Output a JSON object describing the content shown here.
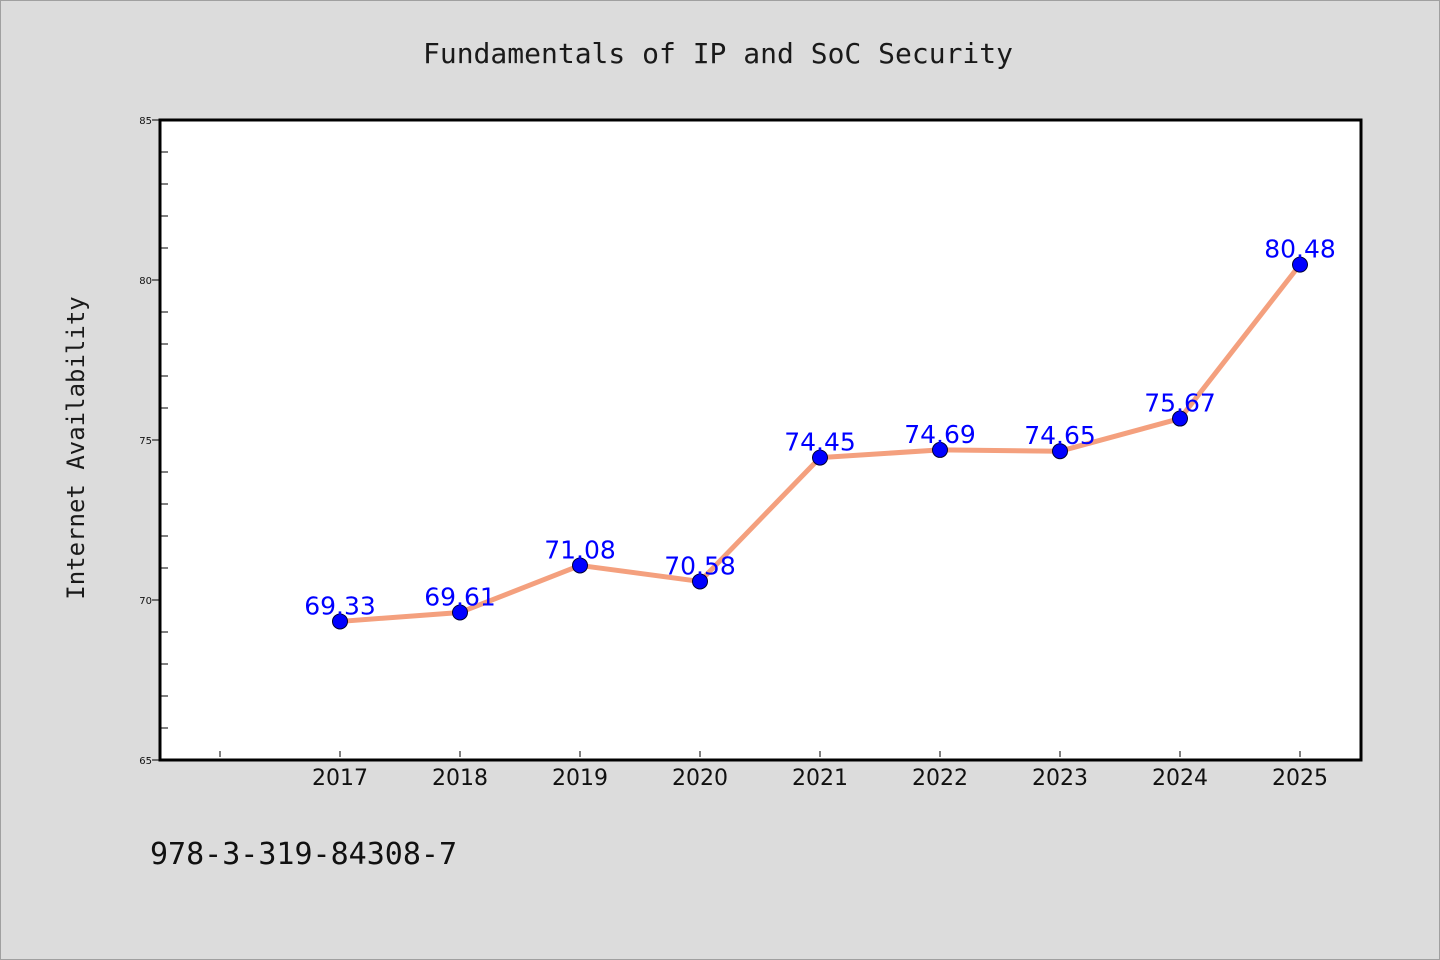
{
  "chart_data": {
    "type": "line",
    "title": "Fundamentals of IP and SoC Security",
    "xlabel": "",
    "ylabel": "Internet Availability",
    "categories": [
      "2017",
      "2018",
      "2019",
      "2020",
      "2021",
      "2022",
      "2023",
      "2024",
      "2025"
    ],
    "series": [
      {
        "values": [
          69.33,
          69.61,
          71.08,
          70.58,
          74.45,
          74.69,
          74.65,
          75.67,
          80.48
        ],
        "labels": [
          "69.33",
          "69.61",
          "71.08",
          "70.58",
          "74.45",
          "74.69",
          "74.65",
          "75.67",
          "80.48"
        ],
        "line_color": "#f4a07e",
        "marker_color": "#0000ff"
      }
    ],
    "ylim": [
      65,
      85
    ],
    "yticks": [
      "65",
      "70",
      "75",
      "80",
      "85"
    ],
    "grid": false,
    "legend": "none",
    "data_label_color": "#0000ff"
  },
  "footer": {
    "text": "978-3-319-84308-7"
  }
}
